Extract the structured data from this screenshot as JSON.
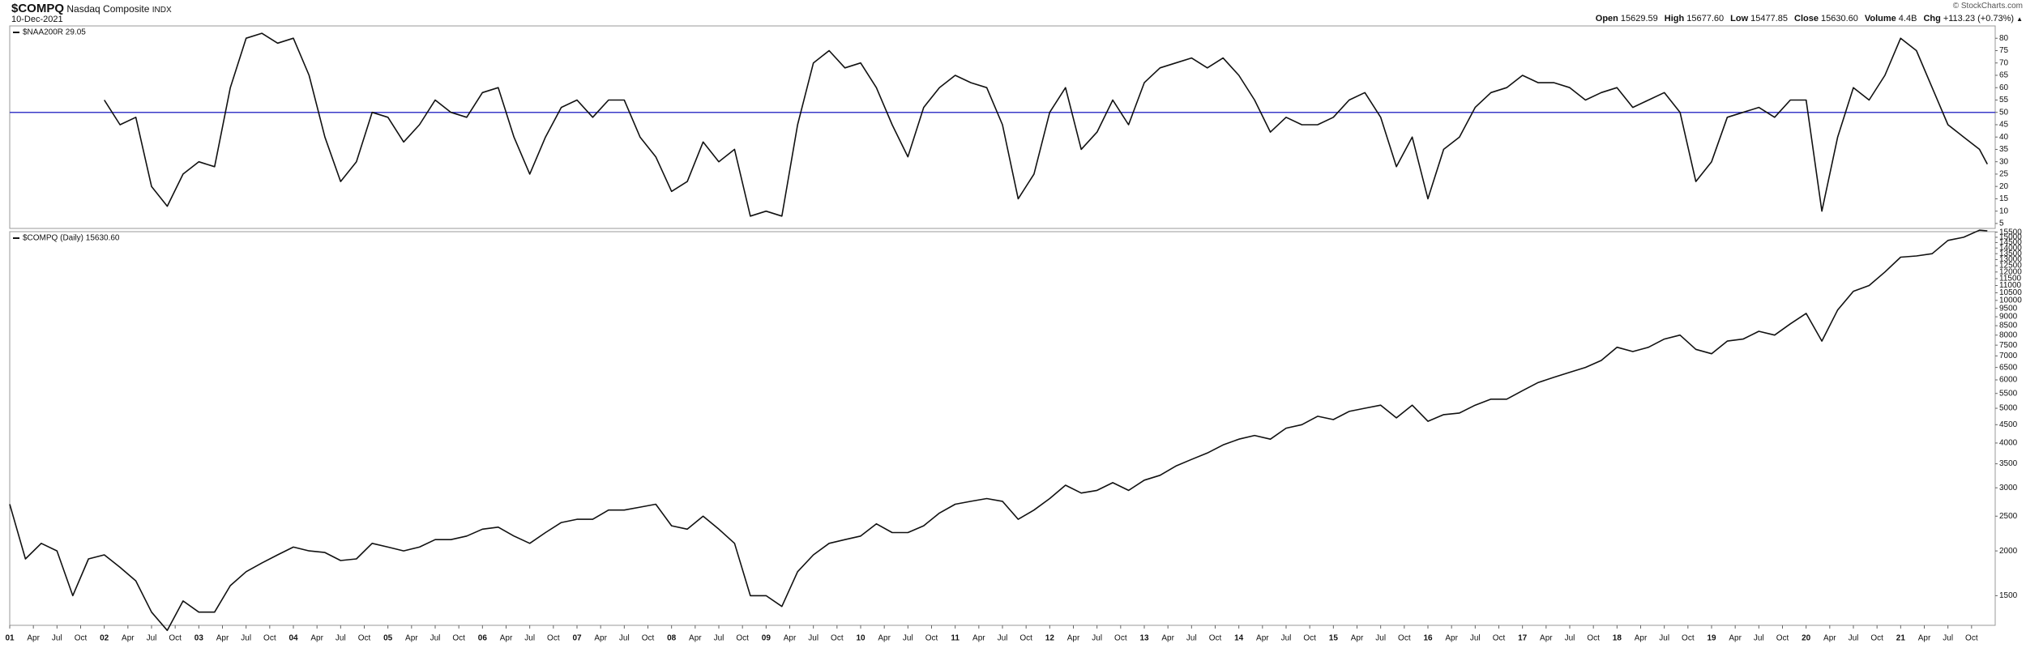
{
  "header": {
    "symbol": "$COMPQ",
    "name": "Nasdaq Composite",
    "exchange": "INDX",
    "date": "10-Dec-2021",
    "credit": "© StockCharts.com",
    "quote": [
      {
        "label": "Open",
        "value": "15629.59"
      },
      {
        "label": "High",
        "value": "15677.60"
      },
      {
        "label": "Low",
        "value": "15477.85"
      },
      {
        "label": "Close",
        "value": "15630.60"
      },
      {
        "label": "Volume",
        "value": "4.4B"
      },
      {
        "label": "Chg",
        "value": "+113.23 (+0.73%)"
      }
    ]
  },
  "chart_data": [
    {
      "type": "line",
      "xlim": [
        "2001-01",
        "2022-01"
      ],
      "ylim": [
        3,
        85
      ],
      "yticks": [
        5,
        10,
        15,
        20,
        25,
        30,
        35,
        40,
        45,
        50,
        55,
        60,
        65,
        70,
        75,
        80
      ],
      "reference_line": {
        "value": 50,
        "color": "#3b3bc8"
      },
      "x": [
        "2001-01",
        "2001-03",
        "2001-05",
        "2001-07",
        "2001-09",
        "2001-11",
        "2002-01",
        "2002-03",
        "2002-05",
        "2002-07",
        "2002-09",
        "2002-11",
        "2003-01",
        "2003-03",
        "2003-05",
        "2003-07",
        "2003-09",
        "2003-11",
        "2004-01",
        "2004-03",
        "2004-05",
        "2004-07",
        "2004-09",
        "2004-11",
        "2005-01",
        "2005-03",
        "2005-05",
        "2005-07",
        "2005-09",
        "2005-11",
        "2006-01",
        "2006-03",
        "2006-05",
        "2006-07",
        "2006-09",
        "2006-11",
        "2007-01",
        "2007-03",
        "2007-05",
        "2007-07",
        "2007-09",
        "2007-11",
        "2008-01",
        "2008-03",
        "2008-05",
        "2008-07",
        "2008-09",
        "2008-11",
        "2009-01",
        "2009-03",
        "2009-05",
        "2009-07",
        "2009-09",
        "2009-11",
        "2010-01",
        "2010-03",
        "2010-05",
        "2010-07",
        "2010-09",
        "2010-11",
        "2011-01",
        "2011-03",
        "2011-05",
        "2011-07",
        "2011-09",
        "2011-11",
        "2012-01",
        "2012-03",
        "2012-05",
        "2012-07",
        "2012-09",
        "2012-11",
        "2013-01",
        "2013-03",
        "2013-05",
        "2013-07",
        "2013-09",
        "2013-11",
        "2014-01",
        "2014-03",
        "2014-05",
        "2014-07",
        "2014-09",
        "2014-11",
        "2015-01",
        "2015-03",
        "2015-05",
        "2015-07",
        "2015-09",
        "2015-11",
        "2016-01",
        "2016-03",
        "2016-05",
        "2016-07",
        "2016-09",
        "2016-11",
        "2017-01",
        "2017-03",
        "2017-05",
        "2017-07",
        "2017-09",
        "2017-11",
        "2018-01",
        "2018-03",
        "2018-05",
        "2018-07",
        "2018-09",
        "2018-11",
        "2019-01",
        "2019-03",
        "2019-05",
        "2019-07",
        "2019-09",
        "2019-11",
        "2020-01",
        "2020-03",
        "2020-05",
        "2020-07",
        "2020-09",
        "2020-11",
        "2021-01",
        "2021-03",
        "2021-05",
        "2021-07",
        "2021-09",
        "2021-11",
        "2021-12"
      ],
      "series": [
        {
          "name": "$NAA200R 29.05",
          "color": "#111111",
          "values": [
            null,
            null,
            null,
            null,
            null,
            null,
            55,
            45,
            48,
            20,
            12,
            25,
            30,
            28,
            60,
            80,
            82,
            78,
            80,
            65,
            40,
            22,
            30,
            50,
            48,
            38,
            45,
            55,
            50,
            48,
            58,
            60,
            40,
            25,
            40,
            52,
            55,
            48,
            55,
            55,
            40,
            32,
            18,
            22,
            38,
            30,
            35,
            8,
            10,
            8,
            45,
            70,
            75,
            68,
            70,
            60,
            45,
            32,
            52,
            60,
            65,
            62,
            60,
            45,
            15,
            25,
            50,
            60,
            35,
            42,
            55,
            45,
            62,
            68,
            70,
            72,
            68,
            72,
            65,
            55,
            42,
            48,
            45,
            45,
            48,
            55,
            58,
            48,
            28,
            40,
            15,
            35,
            40,
            52,
            58,
            60,
            65,
            62,
            62,
            60,
            55,
            58,
            60,
            52,
            55,
            58,
            50,
            22,
            30,
            48,
            50,
            52,
            48,
            55,
            55,
            10,
            40,
            60,
            55,
            65,
            80,
            75,
            60,
            45,
            40,
            35,
            29.05
          ]
        }
      ]
    },
    {
      "type": "line",
      "log": true,
      "xlim": [
        "2001-01",
        "2022-01"
      ],
      "ylim": [
        1240,
        15550
      ],
      "yticks": [
        1500,
        2000,
        2500,
        3000,
        3500,
        4000,
        4500,
        5000,
        5500,
        6000,
        6500,
        7000,
        7500,
        8000,
        8500,
        9000,
        9500,
        10000,
        10500,
        11000,
        11500,
        12000,
        12500,
        13000,
        13500,
        14000,
        14500,
        15000,
        15500
      ],
      "xticks": [
        {
          "value": "2001-01",
          "label": "01"
        },
        {
          "value": "2001-04",
          "label": "Apr"
        },
        {
          "value": "2001-07",
          "label": "Jul"
        },
        {
          "value": "2001-10",
          "label": "Oct"
        },
        {
          "value": "2002-01",
          "label": "02"
        },
        {
          "value": "2002-04",
          "label": "Apr"
        },
        {
          "value": "2002-07",
          "label": "Jul"
        },
        {
          "value": "2002-10",
          "label": "Oct"
        },
        {
          "value": "2003-01",
          "label": "03"
        },
        {
          "value": "2003-04",
          "label": "Apr"
        },
        {
          "value": "2003-07",
          "label": "Jul"
        },
        {
          "value": "2003-10",
          "label": "Oct"
        },
        {
          "value": "2004-01",
          "label": "04"
        },
        {
          "value": "2004-04",
          "label": "Apr"
        },
        {
          "value": "2004-07",
          "label": "Jul"
        },
        {
          "value": "2004-10",
          "label": "Oct"
        },
        {
          "value": "2005-01",
          "label": "05"
        },
        {
          "value": "2005-04",
          "label": "Apr"
        },
        {
          "value": "2005-07",
          "label": "Jul"
        },
        {
          "value": "2005-10",
          "label": "Oct"
        },
        {
          "value": "2006-01",
          "label": "06"
        },
        {
          "value": "2006-04",
          "label": "Apr"
        },
        {
          "value": "2006-07",
          "label": "Jul"
        },
        {
          "value": "2006-10",
          "label": "Oct"
        },
        {
          "value": "2007-01",
          "label": "07"
        },
        {
          "value": "2007-04",
          "label": "Apr"
        },
        {
          "value": "2007-07",
          "label": "Jul"
        },
        {
          "value": "2007-10",
          "label": "Oct"
        },
        {
          "value": "2008-01",
          "label": "08"
        },
        {
          "value": "2008-04",
          "label": "Apr"
        },
        {
          "value": "2008-07",
          "label": "Jul"
        },
        {
          "value": "2008-10",
          "label": "Oct"
        },
        {
          "value": "2009-01",
          "label": "09"
        },
        {
          "value": "2009-04",
          "label": "Apr"
        },
        {
          "value": "2009-07",
          "label": "Jul"
        },
        {
          "value": "2009-10",
          "label": "Oct"
        },
        {
          "value": "2010-01",
          "label": "10"
        },
        {
          "value": "2010-04",
          "label": "Apr"
        },
        {
          "value": "2010-07",
          "label": "Jul"
        },
        {
          "value": "2010-10",
          "label": "Oct"
        },
        {
          "value": "2011-01",
          "label": "11"
        },
        {
          "value": "2011-04",
          "label": "Apr"
        },
        {
          "value": "2011-07",
          "label": "Jul"
        },
        {
          "value": "2011-10",
          "label": "Oct"
        },
        {
          "value": "2012-01",
          "label": "12"
        },
        {
          "value": "2012-04",
          "label": "Apr"
        },
        {
          "value": "2012-07",
          "label": "Jul"
        },
        {
          "value": "2012-10",
          "label": "Oct"
        },
        {
          "value": "2013-01",
          "label": "13"
        },
        {
          "value": "2013-04",
          "label": "Apr"
        },
        {
          "value": "2013-07",
          "label": "Jul"
        },
        {
          "value": "2013-10",
          "label": "Oct"
        },
        {
          "value": "2014-01",
          "label": "14"
        },
        {
          "value": "2014-04",
          "label": "Apr"
        },
        {
          "value": "2014-07",
          "label": "Jul"
        },
        {
          "value": "2014-10",
          "label": "Oct"
        },
        {
          "value": "2015-01",
          "label": "15"
        },
        {
          "value": "2015-04",
          "label": "Apr"
        },
        {
          "value": "2015-07",
          "label": "Jul"
        },
        {
          "value": "2015-10",
          "label": "Oct"
        },
        {
          "value": "2016-01",
          "label": "16"
        },
        {
          "value": "2016-04",
          "label": "Apr"
        },
        {
          "value": "2016-07",
          "label": "Jul"
        },
        {
          "value": "2016-10",
          "label": "Oct"
        },
        {
          "value": "2017-01",
          "label": "17"
        },
        {
          "value": "2017-04",
          "label": "Apr"
        },
        {
          "value": "2017-07",
          "label": "Jul"
        },
        {
          "value": "2017-10",
          "label": "Oct"
        },
        {
          "value": "2018-01",
          "label": "18"
        },
        {
          "value": "2018-04",
          "label": "Apr"
        },
        {
          "value": "2018-07",
          "label": "Jul"
        },
        {
          "value": "2018-10",
          "label": "Oct"
        },
        {
          "value": "2019-01",
          "label": "19"
        },
        {
          "value": "2019-04",
          "label": "Apr"
        },
        {
          "value": "2019-07",
          "label": "Jul"
        },
        {
          "value": "2019-10",
          "label": "Oct"
        },
        {
          "value": "2020-01",
          "label": "20"
        },
        {
          "value": "2020-04",
          "label": "Apr"
        },
        {
          "value": "2020-07",
          "label": "Jul"
        },
        {
          "value": "2020-10",
          "label": "Oct"
        },
        {
          "value": "2021-01",
          "label": "21"
        },
        {
          "value": "2021-04",
          "label": "Apr"
        },
        {
          "value": "2021-07",
          "label": "Jul"
        },
        {
          "value": "2021-10",
          "label": "Oct"
        }
      ],
      "x": [
        "2001-01",
        "2001-03",
        "2001-05",
        "2001-07",
        "2001-09",
        "2001-11",
        "2002-01",
        "2002-03",
        "2002-05",
        "2002-07",
        "2002-09",
        "2002-11",
        "2003-01",
        "2003-03",
        "2003-05",
        "2003-07",
        "2003-09",
        "2003-11",
        "2004-01",
        "2004-03",
        "2004-05",
        "2004-07",
        "2004-09",
        "2004-11",
        "2005-01",
        "2005-03",
        "2005-05",
        "2005-07",
        "2005-09",
        "2005-11",
        "2006-01",
        "2006-03",
        "2006-05",
        "2006-07",
        "2006-09",
        "2006-11",
        "2007-01",
        "2007-03",
        "2007-05",
        "2007-07",
        "2007-09",
        "2007-11",
        "2008-01",
        "2008-03",
        "2008-05",
        "2008-07",
        "2008-09",
        "2008-11",
        "2009-01",
        "2009-03",
        "2009-05",
        "2009-07",
        "2009-09",
        "2009-11",
        "2010-01",
        "2010-03",
        "2010-05",
        "2010-07",
        "2010-09",
        "2010-11",
        "2011-01",
        "2011-03",
        "2011-05",
        "2011-07",
        "2011-09",
        "2011-11",
        "2012-01",
        "2012-03",
        "2012-05",
        "2012-07",
        "2012-09",
        "2012-11",
        "2013-01",
        "2013-03",
        "2013-05",
        "2013-07",
        "2013-09",
        "2013-11",
        "2014-01",
        "2014-03",
        "2014-05",
        "2014-07",
        "2014-09",
        "2014-11",
        "2015-01",
        "2015-03",
        "2015-05",
        "2015-07",
        "2015-09",
        "2015-11",
        "2016-01",
        "2016-03",
        "2016-05",
        "2016-07",
        "2016-09",
        "2016-11",
        "2017-01",
        "2017-03",
        "2017-05",
        "2017-07",
        "2017-09",
        "2017-11",
        "2018-01",
        "2018-03",
        "2018-05",
        "2018-07",
        "2018-09",
        "2018-11",
        "2019-01",
        "2019-03",
        "2019-05",
        "2019-07",
        "2019-09",
        "2019-11",
        "2020-01",
        "2020-03",
        "2020-05",
        "2020-07",
        "2020-09",
        "2020-11",
        "2021-01",
        "2021-03",
        "2021-05",
        "2021-07",
        "2021-09",
        "2021-11",
        "2021-12"
      ],
      "series": [
        {
          "name": "$COMPQ (Daily) 15630.60",
          "color": "#111111",
          "values": [
            2700,
            1900,
            2100,
            2000,
            1500,
            1900,
            1950,
            1800,
            1650,
            1350,
            1200,
            1450,
            1350,
            1350,
            1600,
            1750,
            1850,
            1950,
            2050,
            2000,
            1980,
            1880,
            1900,
            2100,
            2050,
            2000,
            2050,
            2150,
            2150,
            2200,
            2300,
            2330,
            2200,
            2100,
            2250,
            2400,
            2450,
            2450,
            2600,
            2600,
            2650,
            2700,
            2350,
            2300,
            2500,
            2300,
            2100,
            1500,
            1500,
            1400,
            1750,
            1950,
            2100,
            2150,
            2200,
            2380,
            2250,
            2250,
            2350,
            2550,
            2700,
            2750,
            2800,
            2750,
            2450,
            2600,
            2800,
            3050,
            2900,
            2950,
            3100,
            2950,
            3150,
            3250,
            3450,
            3600,
            3750,
            3950,
            4100,
            4200,
            4100,
            4400,
            4500,
            4750,
            4650,
            4900,
            5000,
            5100,
            4700,
            5100,
            4600,
            4800,
            4850,
            5100,
            5300,
            5300,
            5600,
            5900,
            6100,
            6300,
            6500,
            6800,
            7400,
            7200,
            7400,
            7800,
            8000,
            7300,
            7100,
            7700,
            7800,
            8200,
            8000,
            8600,
            9200,
            7700,
            9400,
            10600,
            11000,
            12000,
            13200,
            13300,
            13500,
            14700,
            15000,
            15700,
            15630.6
          ]
        }
      ]
    }
  ]
}
